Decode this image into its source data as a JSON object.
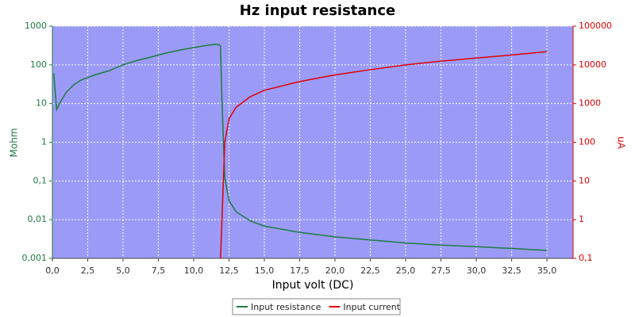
{
  "chart_data": {
    "type": "line",
    "title": "Hz input resistance",
    "x_label": "Input volt (DC)",
    "y_label": "Mohm",
    "y2_label": "uA",
    "x": [
      0.1,
      0.3,
      0.5,
      1,
      1.5,
      2,
      3,
      4,
      5,
      6,
      7,
      8,
      9,
      10,
      11,
      11.5,
      11.8,
      11.9,
      12,
      12.2,
      12.5,
      13,
      14,
      15,
      17.5,
      20,
      22.5,
      25,
      27.5,
      30,
      32.5,
      35
    ],
    "series": [
      {
        "name": "Input resistance",
        "color": "#1f7a3f",
        "axis": "y",
        "values": [
          60,
          7,
          10,
          20,
          30,
          40,
          55,
          70,
          100,
          130,
          160,
          200,
          240,
          280,
          320,
          340,
          330,
          300,
          12,
          0.12,
          0.031,
          0.016,
          0.0093,
          0.0068,
          0.0047,
          0.0036,
          0.003,
          0.0025,
          0.0022,
          0.002,
          0.0018,
          0.0016
        ]
      },
      {
        "name": "Input current",
        "color": "#e00000",
        "axis": "y2",
        "values": [
          null,
          null,
          null,
          null,
          null,
          null,
          null,
          null,
          null,
          null,
          null,
          null,
          null,
          null,
          null,
          null,
          null,
          0.1,
          1,
          100,
          400,
          800,
          1500,
          2200,
          3700,
          5500,
          7500,
          10000,
          12500,
          15000,
          18000,
          22000
        ]
      }
    ],
    "xlim": [
      0,
      36.85
    ],
    "xticks": [
      {
        "value": 0,
        "label": "0,0"
      },
      {
        "value": 2.5,
        "label": "2,5"
      },
      {
        "value": 5,
        "label": "5,0"
      },
      {
        "value": 7.5,
        "label": "7,5"
      },
      {
        "value": 10,
        "label": "10,0"
      },
      {
        "value": 12.5,
        "label": "12,5"
      },
      {
        "value": 15,
        "label": "15,0"
      },
      {
        "value": 17.5,
        "label": "17,5"
      },
      {
        "value": 20,
        "label": "20,0"
      },
      {
        "value": 22.5,
        "label": "22,5"
      },
      {
        "value": 25,
        "label": "25,0"
      },
      {
        "value": 27.5,
        "label": "27,5"
      },
      {
        "value": 30,
        "label": "30,0"
      },
      {
        "value": 32.5,
        "label": "32,5"
      },
      {
        "value": 35,
        "label": "35,0"
      }
    ],
    "ylim": [
      0.001,
      1000
    ],
    "yticks": [
      {
        "value": 0.001,
        "label": "0,001"
      },
      {
        "value": 0.01,
        "label": "0,01"
      },
      {
        "value": 0.1,
        "label": "0,1"
      },
      1,
      10,
      100,
      1000
    ],
    "y2lim": [
      0.1,
      100000
    ],
    "y2ticks": [
      {
        "value": 0.1,
        "label": "0,1"
      },
      1,
      10,
      100,
      1000,
      10000,
      100000
    ],
    "y_log": true,
    "y2_log": true,
    "grid": true,
    "legend": "bottom"
  }
}
